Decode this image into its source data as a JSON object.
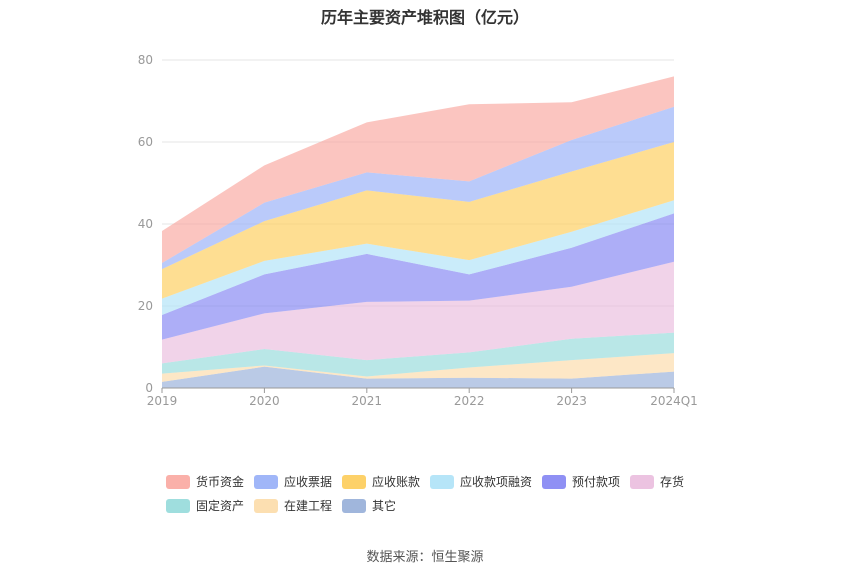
{
  "title": "历年主要资产堆积图（亿元）",
  "source": "数据来源：恒生聚源",
  "chart_data": {
    "type": "area",
    "stacked": true,
    "categories": [
      "2019",
      "2020",
      "2021",
      "2022",
      "2023",
      "2024Q1"
    ],
    "ylim": [
      0,
      80
    ],
    "yticks": [
      "0",
      "20",
      "40",
      "60",
      "80"
    ],
    "series": [
      {
        "name": "其它",
        "color": "#8fa9d6",
        "values": [
          1.5,
          5.2,
          2.3,
          2.5,
          2.3,
          4.0
        ]
      },
      {
        "name": "在建工程",
        "color": "#fbd9a3",
        "values": [
          2.0,
          0.3,
          0.5,
          2.5,
          4.5,
          4.5
        ]
      },
      {
        "name": "固定资产",
        "color": "#8ed8d8",
        "values": [
          2.5,
          4.0,
          4.0,
          3.7,
          5.2,
          5.0
        ]
      },
      {
        "name": "存货",
        "color": "#e9b8dc",
        "values": [
          5.8,
          8.7,
          14.2,
          12.6,
          12.7,
          17.3
        ]
      },
      {
        "name": "预付款项",
        "color": "#7b7cf2",
        "values": [
          6.0,
          9.5,
          11.7,
          6.4,
          9.5,
          11.8
        ]
      },
      {
        "name": "应收款项融资",
        "color": "#a9e0f7",
        "values": [
          4.0,
          3.3,
          2.5,
          3.5,
          3.9,
          3.2
        ]
      },
      {
        "name": "应收账款",
        "color": "#fdc94f",
        "values": [
          7.2,
          9.7,
          13.0,
          14.2,
          14.7,
          14.2
        ]
      },
      {
        "name": "应收票据",
        "color": "#8fa9f7",
        "values": [
          1.5,
          4.5,
          4.4,
          5.0,
          7.7,
          8.6
        ]
      },
      {
        "name": "货币资金",
        "color": "#f9a29a",
        "values": [
          7.8,
          9.1,
          12.2,
          18.8,
          9.2,
          7.4
        ]
      }
    ]
  }
}
